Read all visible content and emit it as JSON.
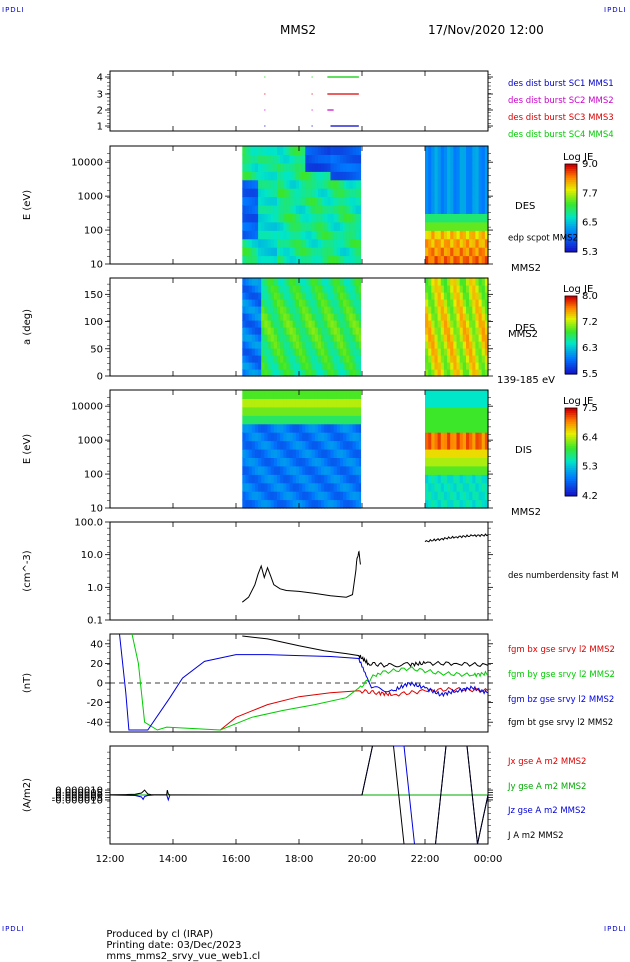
{
  "header": {
    "corner_tl": "IPDLI",
    "corner_tr": "IPDLI",
    "corner_bl": "IPDLI",
    "corner_br": "IPDLI",
    "spacecraft": "MMS2",
    "datetime": "17/Nov/2020 12:00"
  },
  "footer": {
    "produced": "Produced by cl (IRAP)",
    "printing": "Printing date: 03/Dec/2023",
    "file": "mms_mms2_srvy_vue_web1.cl"
  },
  "time_axis": {
    "labels": [
      "12:00",
      "14:00",
      "16:00",
      "18:00",
      "20:00",
      "22:00",
      "00:00"
    ],
    "range_hours": [
      12,
      24
    ]
  },
  "chart_data": [
    {
      "type": "line",
      "panel": "burst",
      "yticks": [
        "4",
        "3",
        "2",
        "1"
      ],
      "ylim": [
        0.5,
        4.5
      ],
      "series": [
        {
          "name": "des dist burst SC1 MMS1",
          "color": "#0000cc",
          "level": 1,
          "segments": [
            [
              19.0,
              19.9
            ]
          ]
        },
        {
          "name": "des dist burst SC2 MMS2",
          "color": "#cc00cc",
          "level": 2,
          "segments": [
            [
              18.9,
              19.1
            ]
          ]
        },
        {
          "name": "des dist burst SC3 MMS3",
          "color": "#dd0000",
          "level": 3,
          "segments": [
            [
              18.9,
              19.9
            ]
          ]
        },
        {
          "name": "des dist burst SC4 MMS4",
          "color": "#00cc00",
          "level": 4,
          "segments": [
            [
              18.9,
              19.9
            ]
          ]
        }
      ]
    },
    {
      "type": "heatmap",
      "panel": "des-energy",
      "ylabel": "E (eV)",
      "yscale": "log",
      "ylim": [
        10,
        30000
      ],
      "yticks": [
        "10000",
        "1000",
        "100",
        "10"
      ],
      "instrument": "DES",
      "side_label": "edp scpot MMS2",
      "bottom_label": "MMS2",
      "colorbar": {
        "title": "Log JE",
        "ticks": [
          "9.0",
          "7.7",
          "6.5",
          "5.3"
        ],
        "min": 5.3,
        "max": 9.0
      },
      "intervals": [
        [
          16.2,
          19.95
        ],
        [
          22.0,
          24.0
        ]
      ]
    },
    {
      "type": "heatmap",
      "panel": "des-pitch",
      "ylabel": "a (deg)",
      "ylim": [
        0,
        180
      ],
      "yticks": [
        "150",
        "100",
        "50",
        "0"
      ],
      "instrument": "DES",
      "side_label": "MMS2",
      "bottom_label": "139-185 eV",
      "colorbar": {
        "title": "Log JE",
        "ticks": [
          "8.0",
          "7.2",
          "6.3",
          "5.5"
        ],
        "min": 5.5,
        "max": 8.0
      },
      "intervals": [
        [
          16.2,
          19.95
        ],
        [
          22.0,
          24.0
        ]
      ]
    },
    {
      "type": "heatmap",
      "panel": "dis-energy",
      "ylabel": "E (eV)",
      "yscale": "log",
      "ylim": [
        10,
        30000
      ],
      "yticks": [
        "10000",
        "1000",
        "100",
        "10"
      ],
      "instrument": "DIS",
      "bottom_label": "MMS2",
      "colorbar": {
        "title": "Log JE",
        "ticks": [
          "7.5",
          "6.4",
          "5.3",
          "4.2"
        ],
        "min": 4.2,
        "max": 7.5
      },
      "intervals": [
        [
          16.2,
          19.95
        ],
        [
          22.0,
          24.0
        ]
      ]
    },
    {
      "type": "line",
      "panel": "density",
      "ylabel": "(cm^-3)",
      "yscale": "log",
      "ylim": [
        0.1,
        100
      ],
      "yticks": [
        "100.0",
        "10.0",
        "1.0",
        "0.1"
      ],
      "series": [
        {
          "name": "des numberdensity fast M",
          "color": "#000000",
          "x": [
            16.2,
            16.4,
            16.6,
            16.7,
            16.8,
            16.9,
            17.0,
            17.1,
            17.2,
            17.4,
            17.6,
            18.0,
            18.5,
            19.0,
            19.5,
            19.7,
            19.8,
            19.85,
            19.9,
            19.95
          ],
          "y": [
            0.35,
            0.5,
            1.2,
            2.5,
            4.5,
            2.0,
            4.0,
            2.2,
            1.2,
            0.9,
            0.8,
            0.75,
            0.65,
            0.55,
            0.5,
            0.6,
            3.0,
            8.0,
            12.0,
            5.0
          ]
        },
        {
          "name": "des numberdensity fast M (late)",
          "color": "#000000",
          "x": [
            22.0,
            22.5,
            23.0,
            23.5,
            24.0
          ],
          "y": [
            25,
            30,
            35,
            38,
            40
          ]
        }
      ]
    },
    {
      "type": "line",
      "panel": "magnetic-field",
      "ylabel": "(nT)",
      "ylim": [
        -50,
        50
      ],
      "yticks": [
        "40",
        "20",
        "0",
        "-20",
        "-40"
      ],
      "zero_line": true,
      "series": [
        {
          "name": "fgm bx gse srvy l2 MMS2",
          "color": "#dd0000",
          "x": [
            15.5,
            16.0,
            17.0,
            18.0,
            19.0,
            19.9,
            20.5,
            21.0,
            22.0,
            23.0,
            24.0
          ],
          "y": [
            -48,
            -35,
            -22,
            -14,
            -10,
            -8,
            -10,
            -12,
            -8,
            -6,
            -8
          ]
        },
        {
          "name": "fgm by gse srvy l2 MMS2",
          "color": "#00cc00",
          "x": [
            12.7,
            12.9,
            13.1,
            13.5,
            13.8,
            15.5,
            16.5,
            17.5,
            18.5,
            19.5,
            19.9,
            20.5,
            21.5,
            22.5,
            23.5,
            24.0
          ],
          "y": [
            50,
            20,
            -40,
            -48,
            -45,
            -48,
            -35,
            -28,
            -22,
            -15,
            -5,
            10,
            15,
            10,
            8,
            10
          ]
        },
        {
          "name": "fgm bz gse srvy l2 MMS2",
          "color": "#0000dd",
          "x": [
            12.3,
            12.5,
            12.6,
            13.2,
            13.9,
            14.3,
            15.0,
            16.0,
            17.0,
            18.0,
            19.0,
            19.9,
            20.3,
            21.0,
            21.5,
            22.0,
            22.5,
            23.0,
            23.5,
            24.0
          ],
          "y": [
            50,
            -10,
            -48,
            -48,
            -15,
            5,
            22,
            29,
            29,
            28,
            27,
            25,
            -5,
            -8,
            0,
            -5,
            -12,
            -8,
            -5,
            -10
          ]
        },
        {
          "name": "fgm bt gse srvy l2 MMS2",
          "color": "#000000",
          "x": [
            16.2,
            17.0,
            18.0,
            18.8,
            19.5,
            19.9,
            20.2,
            20.8,
            21.5,
            22.0,
            23.0,
            24.0
          ],
          "y": [
            48,
            45,
            38,
            33,
            30,
            28,
            20,
            18,
            19,
            20,
            20,
            18
          ]
        }
      ]
    },
    {
      "type": "line",
      "panel": "current-density",
      "ylabel": "(A/m2)",
      "ylim": [
        -0.0001,
        0.0001
      ],
      "yticks": [
        "0.000010",
        "0.000005",
        "0.000000",
        "-0.000005",
        "-0.000010"
      ],
      "series": [
        {
          "name": "Jx gse A m2 MMS2",
          "color": "#dd0000",
          "x": [
            12.0,
            24.0
          ],
          "y": [
            0,
            0
          ]
        },
        {
          "name": "Jy gse A m2 MMS2",
          "color": "#00aa00",
          "x": [
            12.0,
            24.0
          ],
          "y": [
            0,
            0
          ]
        },
        {
          "name": "Jz gse A m2 MMS2",
          "color": "#0000dd",
          "x": [
            12.0,
            12.8,
            13.0,
            13.05,
            13.1,
            13.2,
            13.4,
            13.8,
            13.85,
            13.9,
            14.0,
            16.0,
            20.0,
            24.0
          ],
          "y": [
            0,
            -1e-06,
            -4e-06,
            -9e-06,
            -3e-06,
            -1e-06,
            0,
            0,
            -1e-05,
            0,
            0,
            0,
            0,
            0
          ]
        },
        {
          "name": "J A m2 MMS2",
          "color": "#000000",
          "x": [
            12.0,
            12.5,
            12.8,
            13.0,
            13.1,
            13.15,
            13.2,
            13.3,
            13.6,
            13.8,
            13.82,
            13.85,
            13.9,
            14.2,
            16.0,
            20.0,
            24.0
          ],
          "y": [
            5e-07,
            8e-07,
            1.5e-06,
            4e-06,
            1e-05,
            6e-06,
            2e-06,
            8e-07,
            5e-07,
            6e-07,
            1e-05,
            2e-06,
            3e-07,
            2e-07,
            1e-07,
            1e-07,
            1e-07
          ]
        }
      ]
    }
  ]
}
